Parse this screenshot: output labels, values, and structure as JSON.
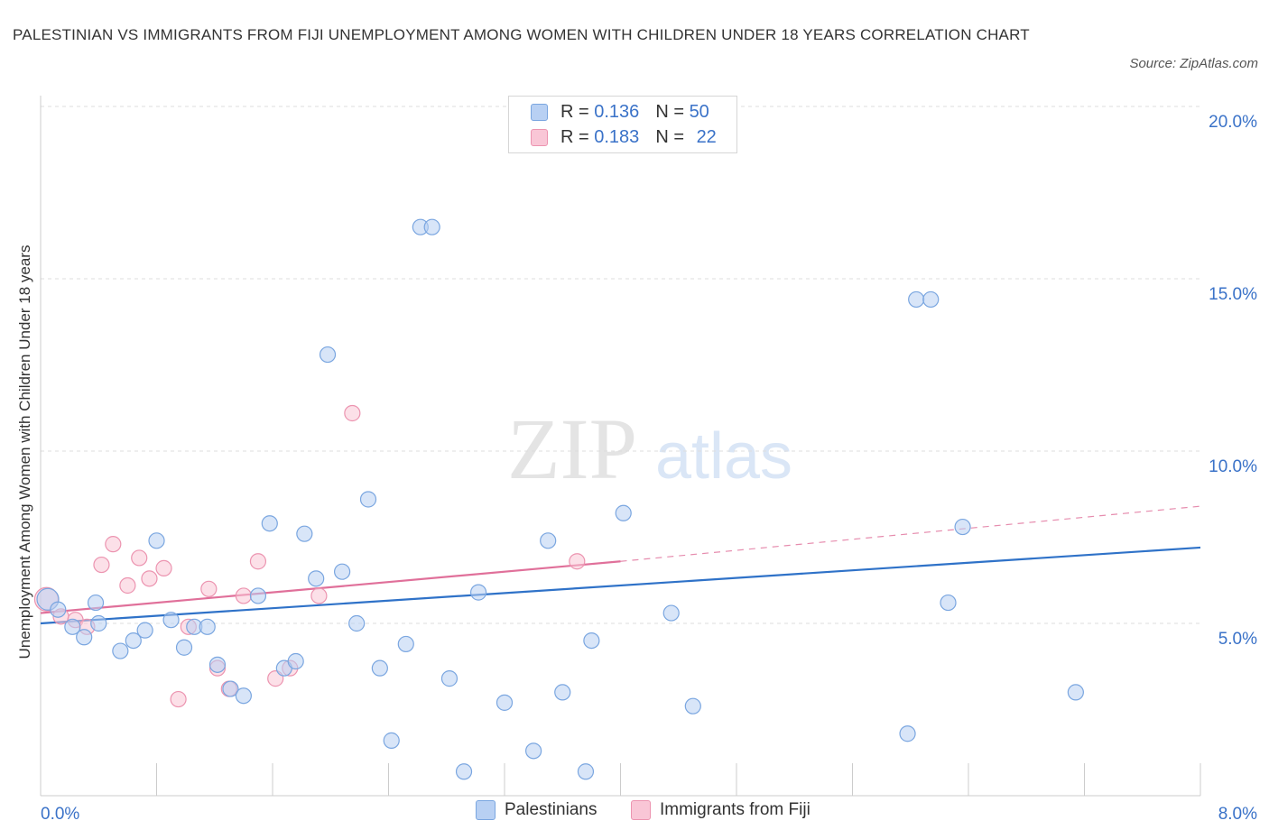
{
  "header": {
    "title": "PALESTINIAN VS IMMIGRANTS FROM FIJI UNEMPLOYMENT AMONG WOMEN WITH CHILDREN UNDER 18 YEARS CORRELATION CHART",
    "source": "Source: ZipAtlas.com"
  },
  "watermark": {
    "zip": "ZIP",
    "atlas": "atlas"
  },
  "legend_top": {
    "rows": [
      {
        "r_label": "R = ",
        "r_value": "0.136",
        "n_label": "N = ",
        "n_value": "50"
      },
      {
        "r_label": "R = ",
        "r_value": "0.183",
        "n_label": "N = ",
        "n_value": "22"
      }
    ]
  },
  "legend_bottom": {
    "items": [
      "Palestinians",
      "Immigrants from Fiji"
    ]
  },
  "colors": {
    "blue_fill": "#b8d0f3",
    "blue_stroke": "#7aa6e0",
    "blue_line": "#2f72c8",
    "pink_fill": "#f9c6d6",
    "pink_stroke": "#ec94b0",
    "pink_line": "#e0709a",
    "axis_text": "#3a72c8",
    "grid": "#dddddd"
  },
  "chart_data": {
    "type": "scatter",
    "title": "PALESTINIAN VS IMMIGRANTS FROM FIJI UNEMPLOYMENT AMONG WOMEN WITH CHILDREN UNDER 18 YEARS CORRELATION CHART",
    "xlabel": "",
    "ylabel": "Unemployment Among Women with Children Under 18 years",
    "xlim": [
      0,
      8
    ],
    "ylim": [
      0,
      20
    ],
    "x_tick_labels": [
      "0.0%",
      "8.0%"
    ],
    "y_ticks": [
      5,
      10,
      15,
      20
    ],
    "y_tick_labels": [
      "5.0%",
      "10.0%",
      "15.0%",
      "20.0%"
    ],
    "grid": true,
    "series": [
      {
        "name": "Palestinians",
        "color": "#b8d0f3",
        "points": [
          [
            0.05,
            5.7
          ],
          [
            0.12,
            5.4
          ],
          [
            0.22,
            4.9
          ],
          [
            0.3,
            4.6
          ],
          [
            0.4,
            5.0
          ],
          [
            0.38,
            5.6
          ],
          [
            0.55,
            4.2
          ],
          [
            0.64,
            4.5
          ],
          [
            0.72,
            4.8
          ],
          [
            0.8,
            7.4
          ],
          [
            0.9,
            5.1
          ],
          [
            0.99,
            4.3
          ],
          [
            1.06,
            4.9
          ],
          [
            1.15,
            4.9
          ],
          [
            1.22,
            3.8
          ],
          [
            1.31,
            3.1
          ],
          [
            1.4,
            2.9
          ],
          [
            1.5,
            5.8
          ],
          [
            1.58,
            7.9
          ],
          [
            1.68,
            3.7
          ],
          [
            1.76,
            3.9
          ],
          [
            1.82,
            7.6
          ],
          [
            1.9,
            6.3
          ],
          [
            1.98,
            12.8
          ],
          [
            2.08,
            6.5
          ],
          [
            2.18,
            5.0
          ],
          [
            2.26,
            8.6
          ],
          [
            2.34,
            3.7
          ],
          [
            2.42,
            1.6
          ],
          [
            2.52,
            4.4
          ],
          [
            2.62,
            16.5
          ],
          [
            2.7,
            16.5
          ],
          [
            2.82,
            3.4
          ],
          [
            2.92,
            0.7
          ],
          [
            3.02,
            5.9
          ],
          [
            3.2,
            2.7
          ],
          [
            3.4,
            1.3
          ],
          [
            3.5,
            7.4
          ],
          [
            3.6,
            3.0
          ],
          [
            3.76,
            0.7
          ],
          [
            3.8,
            4.5
          ],
          [
            4.02,
            8.2
          ],
          [
            4.35,
            5.3
          ],
          [
            4.5,
            2.6
          ],
          [
            5.98,
            1.8
          ],
          [
            6.04,
            14.4
          ],
          [
            6.14,
            14.4
          ],
          [
            6.26,
            5.6
          ],
          [
            6.36,
            7.8
          ],
          [
            7.14,
            3.0
          ]
        ]
      },
      {
        "name": "Immigrants from Fiji",
        "color": "#f9c6d6",
        "points": [
          [
            0.04,
            5.7
          ],
          [
            0.14,
            5.2
          ],
          [
            0.24,
            5.1
          ],
          [
            0.32,
            4.9
          ],
          [
            0.42,
            6.7
          ],
          [
            0.5,
            7.3
          ],
          [
            0.6,
            6.1
          ],
          [
            0.68,
            6.9
          ],
          [
            0.75,
            6.3
          ],
          [
            0.85,
            6.6
          ],
          [
            0.95,
            2.8
          ],
          [
            1.02,
            4.9
          ],
          [
            1.16,
            6.0
          ],
          [
            1.22,
            3.7
          ],
          [
            1.3,
            3.1
          ],
          [
            1.4,
            5.8
          ],
          [
            1.5,
            6.8
          ],
          [
            1.62,
            3.4
          ],
          [
            1.72,
            3.7
          ],
          [
            1.92,
            5.8
          ],
          [
            2.15,
            11.1
          ],
          [
            3.7,
            6.8
          ]
        ]
      }
    ],
    "trendlines": [
      {
        "series": "Palestinians",
        "from": [
          0,
          5.0
        ],
        "to": [
          8,
          7.2
        ]
      },
      {
        "series": "Immigrants from Fiji",
        "from": [
          0,
          5.3
        ],
        "to": [
          4,
          6.8
        ],
        "dashed_to": [
          8,
          8.4
        ]
      }
    ]
  }
}
